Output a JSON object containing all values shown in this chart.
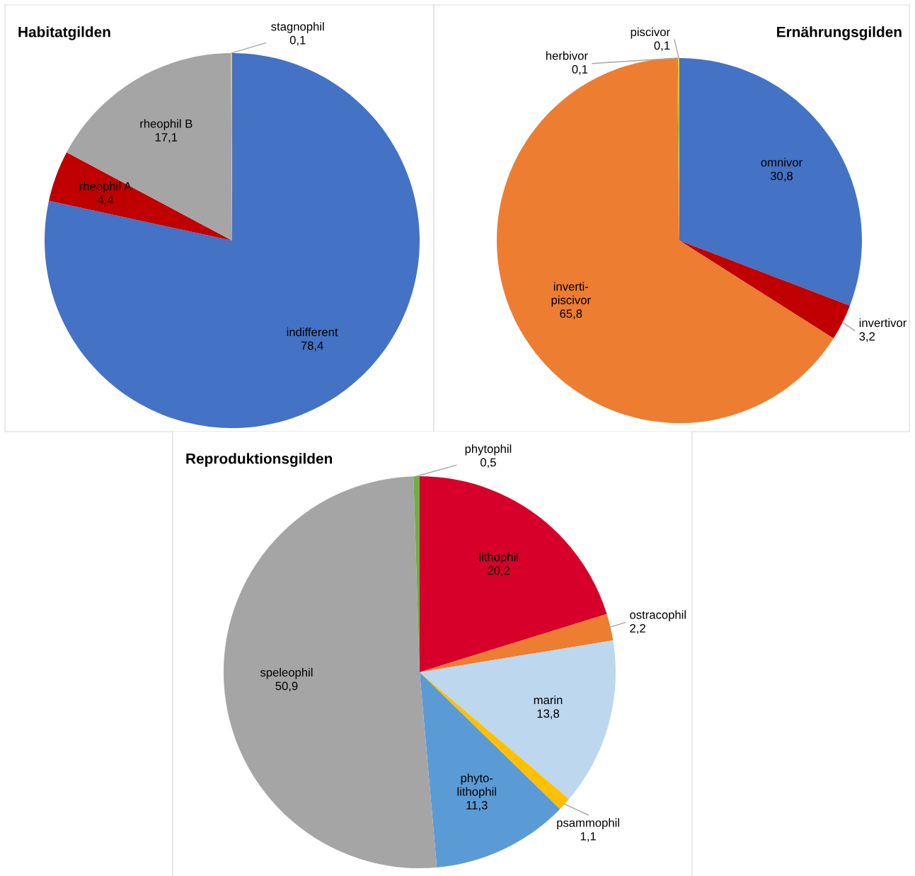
{
  "chart_data": [
    {
      "type": "pie",
      "title": "Habitatgilden",
      "categories": [
        "indifferent",
        "rheophil A",
        "rheophil B",
        "stagnophil"
      ],
      "values": [
        78.4,
        4.4,
        17.1,
        0.1
      ],
      "value_labels": [
        "78,4",
        "4,4",
        "17,1",
        "0,1"
      ],
      "colors": [
        "#4472c4",
        "#c00000",
        "#a5a5a5",
        "#ffc000"
      ]
    },
    {
      "type": "pie",
      "title": "Ernährungsgilden",
      "categories": [
        "omnivor",
        "invertivor",
        "inverti-\npiscivor",
        "herbivor",
        "piscivor"
      ],
      "values": [
        30.8,
        3.2,
        65.8,
        0.1,
        0.1
      ],
      "value_labels": [
        "30,8",
        "3,2",
        "65,8",
        "0,1",
        "0,1"
      ],
      "colors": [
        "#4472c4",
        "#c00000",
        "#ed7d31",
        "#70ad47",
        "#ffc000"
      ]
    },
    {
      "type": "pie",
      "title": "Reproduktionsgilden",
      "categories": [
        "lithophil",
        "ostracophil",
        "marin",
        "psammophil",
        "phyto-\nlithophil",
        "speleophil",
        "phytophil"
      ],
      "values": [
        20.2,
        2.2,
        13.8,
        1.1,
        11.3,
        50.9,
        0.5
      ],
      "value_labels": [
        "20,2",
        "2,2",
        "13,8",
        "1,1",
        "11,3",
        "50,9",
        "0,5"
      ],
      "colors": [
        "#d6002a",
        "#ed7d31",
        "#bdd7ee",
        "#ffc000",
        "#5b9bd5",
        "#a5a5a5",
        "#70ad47"
      ]
    }
  ]
}
